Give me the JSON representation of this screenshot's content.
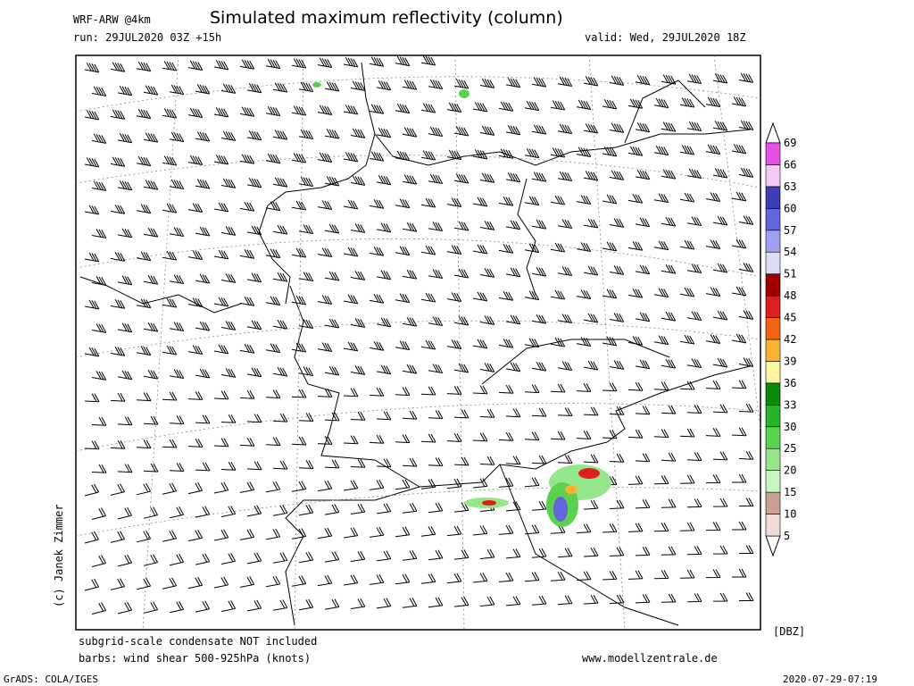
{
  "header": {
    "model": "WRF-ARW @4km",
    "title": "Simulated maximum reflectivity (column)",
    "run": "run: 29JUL2020 03Z +15h",
    "valid": "valid: Wed, 29JUL2020 18Z"
  },
  "credit": "(c) Janek Zimmer",
  "colorbar": {
    "unit": "[DBZ]",
    "levels": [
      5,
      10,
      15,
      20,
      25,
      30,
      33,
      36,
      39,
      42,
      45,
      48,
      51,
      54,
      57,
      60,
      63,
      66,
      69
    ],
    "colors": [
      "#f0dcd6",
      "#c8a098",
      "#c8f5c0",
      "#96e68c",
      "#5ad250",
      "#28b428",
      "#0a8c0a",
      "#fff5a0",
      "#fab432",
      "#f06414",
      "#dc1e1e",
      "#a00000",
      "#dcdcf5",
      "#a0a0f0",
      "#6464dc",
      "#3c3cb4",
      "#f5c8f5",
      "#e650e6"
    ]
  },
  "footer": {
    "note1": "subgrid-scale condensate NOT included",
    "note2": "barbs: wind shear 500-925hPa (knots)",
    "site": "www.modellzentrale.de",
    "software": "GrADS: COLA/IGES",
    "timestamp": "2020-07-29-07:19"
  }
}
